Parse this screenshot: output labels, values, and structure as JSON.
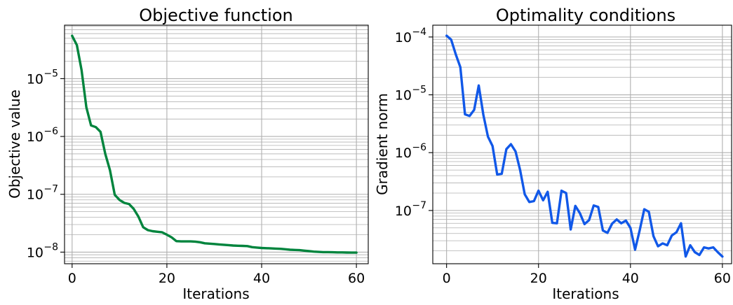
{
  "chart_data": [
    {
      "type": "line",
      "title": "Objective function",
      "xlabel": "Iterations",
      "ylabel": "Objective value",
      "yscale": "log",
      "grid": true,
      "xlim": [
        -1.6,
        62.5
      ],
      "ylim": [
        6.3e-09,
        8.4e-05
      ],
      "xticks": [
        0,
        20,
        40,
        60
      ],
      "xtick_labels": [
        "0",
        "20",
        "40",
        "60"
      ],
      "yticks": [
        1e-08,
        1e-07,
        1e-06,
        1e-05
      ],
      "ytick_labels": [
        {
          "base": "10",
          "exp": "−8"
        },
        {
          "base": "10",
          "exp": "−7"
        },
        {
          "base": "10",
          "exp": "−6"
        },
        {
          "base": "10",
          "exp": "−5"
        }
      ],
      "series": [
        {
          "color": "#00843d",
          "x": [
            0,
            1,
            2,
            3,
            4,
            5,
            6,
            7,
            8,
            9,
            10,
            11,
            12,
            13,
            14,
            15,
            16,
            17,
            18,
            19,
            20,
            21,
            22,
            23,
            24,
            25,
            26,
            27,
            28,
            29,
            30,
            31,
            32,
            33,
            34,
            35,
            36,
            37,
            38,
            39,
            40,
            41,
            42,
            43,
            44,
            45,
            46,
            47,
            48,
            49,
            50,
            51,
            52,
            53,
            54,
            55,
            56,
            57,
            58,
            59,
            60
          ],
          "y": [
            5.5e-05,
            3.8e-05,
            1.4e-05,
            3.2e-06,
            1.55e-06,
            1.45e-06,
            1.2e-06,
            5e-07,
            2.6e-07,
            9.8e-08,
            8e-08,
            7.1e-08,
            6.8e-08,
            5.6e-08,
            4.1e-08,
            2.7e-08,
            2.4e-08,
            2.3e-08,
            2.25e-08,
            2.2e-08,
            2e-08,
            1.8e-08,
            1.55e-08,
            1.53e-08,
            1.53e-08,
            1.53e-08,
            1.52e-08,
            1.48e-08,
            1.42e-08,
            1.4e-08,
            1.38e-08,
            1.36e-08,
            1.34e-08,
            1.32e-08,
            1.3e-08,
            1.29e-08,
            1.28e-08,
            1.27e-08,
            1.22e-08,
            1.2e-08,
            1.18e-08,
            1.17e-08,
            1.16e-08,
            1.15e-08,
            1.14e-08,
            1.12e-08,
            1.1e-08,
            1.09e-08,
            1.08e-08,
            1.06e-08,
            1.04e-08,
            1.02e-08,
            1.01e-08,
            1e-08,
            1e-08,
            9.95e-09,
            9.9e-09,
            9.9e-09,
            9.85e-09,
            9.8e-09,
            9.8e-09
          ]
        }
      ]
    },
    {
      "type": "line",
      "title": "Optimality conditions",
      "xlabel": "Iterations",
      "ylabel": "Gradient norm",
      "yscale": "log",
      "grid": true,
      "xlim": [
        -3.0,
        62.0
      ],
      "ylim": [
        1.2e-08,
        0.00016
      ],
      "xticks": [
        0,
        20,
        40,
        60
      ],
      "xtick_labels": [
        "0",
        "20",
        "40",
        "60"
      ],
      "yticks": [
        1e-07,
        1e-06,
        1e-05,
        0.0001
      ],
      "ytick_labels": [
        {
          "base": "10",
          "exp": "−7"
        },
        {
          "base": "10",
          "exp": "−6"
        },
        {
          "base": "10",
          "exp": "−5"
        },
        {
          "base": "10",
          "exp": "−4"
        }
      ],
      "series": [
        {
          "color": "#1158e8",
          "x": [
            0,
            1,
            2,
            3,
            4,
            5,
            6,
            7,
            8,
            9,
            10,
            11,
            12,
            13,
            14,
            15,
            16,
            17,
            18,
            19,
            20,
            21,
            22,
            23,
            24,
            25,
            26,
            27,
            28,
            29,
            30,
            31,
            32,
            33,
            34,
            35,
            36,
            37,
            38,
            39,
            40,
            41,
            42,
            43,
            44,
            45,
            46,
            47,
            48,
            49,
            50,
            51,
            52,
            53,
            54,
            55,
            56,
            57,
            58,
            59,
            60
          ],
          "y": [
            0.000105,
            9e-05,
            5e-05,
            3e-05,
            4.6e-06,
            4.3e-06,
            5.5e-06,
            1.45e-05,
            4.5e-06,
            1.9e-06,
            1.3e-06,
            4.2e-07,
            4.3e-07,
            1.15e-06,
            1.4e-06,
            1.05e-06,
            5e-07,
            1.9e-07,
            1.4e-07,
            1.45e-07,
            2.2e-07,
            1.5e-07,
            2.1e-07,
            6.1e-08,
            6e-08,
            2.2e-07,
            2e-07,
            4.7e-08,
            1.2e-07,
            9e-08,
            5.8e-08,
            6.8e-08,
            1.22e-07,
            1.15e-07,
            4.5e-08,
            4.1e-08,
            5.9e-08,
            7e-08,
            6e-08,
            6.7e-08,
            5e-08,
            2.1e-08,
            4.5e-08,
            1.05e-07,
            9.5e-08,
            3.6e-08,
            2.4e-08,
            2.7e-08,
            2.5e-08,
            3.7e-08,
            4.2e-08,
            6e-08,
            1.6e-08,
            2.5e-08,
            1.9e-08,
            1.7e-08,
            2.3e-08,
            2.2e-08,
            2.3e-08,
            1.9e-08,
            1.6e-08
          ]
        }
      ]
    }
  ]
}
